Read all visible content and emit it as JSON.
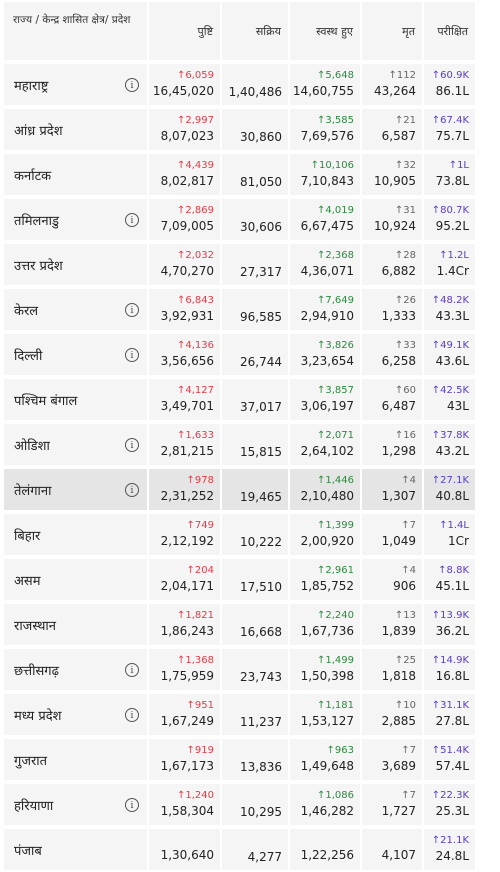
{
  "headers": {
    "name": "राज्य / केन्द्र शासित क्षेत्र/ प्रदेश",
    "confirmed": "पुष्टि",
    "active": "सक्रिय",
    "recovered": "स्वस्थ हुए",
    "deaths": "मृत",
    "tested": "परीक्षित",
    "sort_icon": "sort-arrow-icon"
  },
  "rows": [
    {
      "name": "महाराष्ट्र",
      "info": true,
      "conf_delta": "↑6,059",
      "confirmed": "16,45,020",
      "active": "1,40,486",
      "rec_delta": "↑5,648",
      "recovered": "14,60,755",
      "death_delta": "↑112",
      "deaths": "43,264",
      "test_delta": "↑60.9K",
      "tested": "86.1L"
    },
    {
      "name": "आंध्र प्रदेश",
      "info": false,
      "conf_delta": "↑2,997",
      "confirmed": "8,07,023",
      "active": "30,860",
      "rec_delta": "↑3,585",
      "recovered": "7,69,576",
      "death_delta": "↑21",
      "deaths": "6,587",
      "test_delta": "↑67.4K",
      "tested": "75.7L"
    },
    {
      "name": "कर्नाटक",
      "info": false,
      "conf_delta": "↑4,439",
      "confirmed": "8,02,817",
      "active": "81,050",
      "rec_delta": "↑10,106",
      "recovered": "7,10,843",
      "death_delta": "↑32",
      "deaths": "10,905",
      "test_delta": "↑1L",
      "tested": "73.8L"
    },
    {
      "name": "तमिलनाडु",
      "info": true,
      "conf_delta": "↑2,869",
      "confirmed": "7,09,005",
      "active": "30,606",
      "rec_delta": "↑4,019",
      "recovered": "6,67,475",
      "death_delta": "↑31",
      "deaths": "10,924",
      "test_delta": "↑80.7K",
      "tested": "95.2L"
    },
    {
      "name": "उत्तर प्रदेश",
      "info": false,
      "conf_delta": "↑2,032",
      "confirmed": "4,70,270",
      "active": "27,317",
      "rec_delta": "↑2,368",
      "recovered": "4,36,071",
      "death_delta": "↑28",
      "deaths": "6,882",
      "test_delta": "↑1.2L",
      "tested": "1.4Cr"
    },
    {
      "name": "केरल",
      "info": true,
      "conf_delta": "↑6,843",
      "confirmed": "3,92,931",
      "active": "96,585",
      "rec_delta": "↑7,649",
      "recovered": "2,94,910",
      "death_delta": "↑26",
      "deaths": "1,333",
      "test_delta": "↑48.2K",
      "tested": "43.3L"
    },
    {
      "name": "दिल्ली",
      "info": true,
      "conf_delta": "↑4,136",
      "confirmed": "3,56,656",
      "active": "26,744",
      "rec_delta": "↑3,826",
      "recovered": "3,23,654",
      "death_delta": "↑33",
      "deaths": "6,258",
      "test_delta": "↑49.1K",
      "tested": "43.6L"
    },
    {
      "name": "पश्चिम बंगाल",
      "info": false,
      "conf_delta": "↑4,127",
      "confirmed": "3,49,701",
      "active": "37,017",
      "rec_delta": "↑3,857",
      "recovered": "3,06,197",
      "death_delta": "↑60",
      "deaths": "6,487",
      "test_delta": "↑42.5K",
      "tested": "43L"
    },
    {
      "name": "ओडिशा",
      "info": true,
      "conf_delta": "↑1,633",
      "confirmed": "2,81,215",
      "active": "15,815",
      "rec_delta": "↑2,071",
      "recovered": "2,64,102",
      "death_delta": "↑16",
      "deaths": "1,298",
      "test_delta": "↑37.8K",
      "tested": "43.2L"
    },
    {
      "name": "तेलंगाना",
      "info": true,
      "highlight": true,
      "conf_delta": "↑978",
      "confirmed": "2,31,252",
      "active": "19,465",
      "rec_delta": "↑1,446",
      "recovered": "2,10,480",
      "death_delta": "↑4",
      "deaths": "1,307",
      "test_delta": "↑27.1K",
      "tested": "40.8L"
    },
    {
      "name": "बिहार",
      "info": false,
      "conf_delta": "↑749",
      "confirmed": "2,12,192",
      "active": "10,222",
      "rec_delta": "↑1,399",
      "recovered": "2,00,920",
      "death_delta": "↑7",
      "deaths": "1,049",
      "test_delta": "↑1.4L",
      "tested": "1Cr"
    },
    {
      "name": "असम",
      "info": false,
      "conf_delta": "↑204",
      "confirmed": "2,04,171",
      "active": "17,510",
      "rec_delta": "↑2,961",
      "recovered": "1,85,752",
      "death_delta": "↑4",
      "deaths": "906",
      "test_delta": "↑8.8K",
      "tested": "45.1L"
    },
    {
      "name": "राजस्थान",
      "info": false,
      "conf_delta": "↑1,821",
      "confirmed": "1,86,243",
      "active": "16,668",
      "rec_delta": "↑2,240",
      "recovered": "1,67,736",
      "death_delta": "↑13",
      "deaths": "1,839",
      "test_delta": "↑13.9K",
      "tested": "36.2L"
    },
    {
      "name": "छत्तीसगढ़",
      "info": true,
      "conf_delta": "↑1,368",
      "confirmed": "1,75,959",
      "active": "23,743",
      "rec_delta": "↑1,499",
      "recovered": "1,50,398",
      "death_delta": "↑25",
      "deaths": "1,818",
      "test_delta": "↑14.9K",
      "tested": "16.8L"
    },
    {
      "name": "मध्य प्रदेश",
      "info": true,
      "conf_delta": "↑951",
      "confirmed": "1,67,249",
      "active": "11,237",
      "rec_delta": "↑1,181",
      "recovered": "1,53,127",
      "death_delta": "↑10",
      "deaths": "2,885",
      "test_delta": "↑31.1K",
      "tested": "27.8L"
    },
    {
      "name": "गुजरात",
      "info": false,
      "conf_delta": "↑919",
      "confirmed": "1,67,173",
      "active": "13,836",
      "rec_delta": "↑963",
      "recovered": "1,49,648",
      "death_delta": "↑7",
      "deaths": "3,689",
      "test_delta": "↑51.4K",
      "tested": "57.4L"
    },
    {
      "name": "हरियाणा",
      "info": true,
      "conf_delta": "↑1,240",
      "confirmed": "1,58,304",
      "active": "10,295",
      "rec_delta": "↑1,086",
      "recovered": "1,46,282",
      "death_delta": "↑7",
      "deaths": "1,727",
      "test_delta": "↑22.3K",
      "tested": "25.3L"
    },
    {
      "name": "पंजाब",
      "info": false,
      "conf_delta": "",
      "confirmed": "1,30,640",
      "active": "4,277",
      "rec_delta": "",
      "recovered": "1,22,256",
      "death_delta": "",
      "deaths": "4,107",
      "test_delta": "↑21.1K",
      "tested": "24.8L"
    }
  ],
  "info_icon_glyph": "i",
  "colors": {
    "confirmed_delta": "#e63946",
    "recovered_delta": "#2b8a3e",
    "deaths_delta": "#666666",
    "tested_delta": "#5b3cc4",
    "highlight_row": "#e5e5e5"
  }
}
